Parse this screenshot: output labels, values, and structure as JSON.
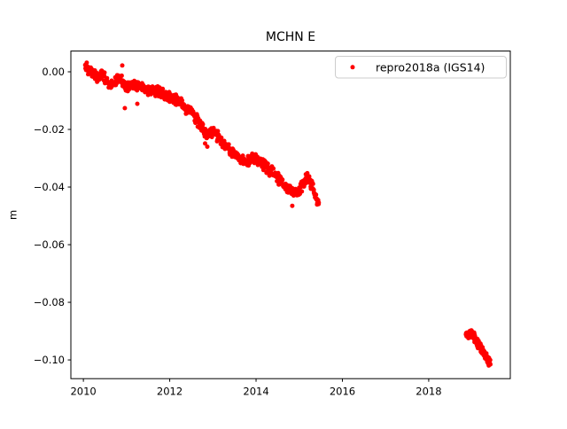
{
  "figure": {
    "background": "#ffffff"
  },
  "chart_data": {
    "type": "scatter",
    "title": "MCHN E",
    "xlabel": "",
    "ylabel": "m",
    "legend_label": "repro2018a (IGS14)",
    "legend_position": "upper right",
    "grid": false,
    "point_color": "#ff0000",
    "axes_color": "#000000",
    "legend_border_color": "#cccccc",
    "xlim": [
      2009.71,
      2019.89
    ],
    "ylim": [
      -0.1065,
      0.0072
    ],
    "xticks": [
      2010,
      2012,
      2014,
      2016,
      2018
    ],
    "xtick_labels": [
      "2010",
      "2012",
      "2014",
      "2016",
      "2018"
    ],
    "yticks": [
      0.0,
      -0.02,
      -0.04,
      -0.06,
      -0.08,
      -0.1
    ],
    "ytick_labels": [
      "0.00",
      "−0.02",
      "−0.04",
      "−0.06",
      "−0.08",
      "−0.10"
    ],
    "series": [
      {
        "name": "repro2018a (IGS14)",
        "color": "#ff0000",
        "marker": "dot",
        "marker_radius_px": 2.5,
        "segments": [
          {
            "x_range": [
              2010.04,
              2015.46
            ],
            "points_per_year": 140,
            "jitter": 0.0022,
            "trend": [
              [
                2010.04,
                0.0015
              ],
              [
                2010.12,
                0.0006
              ],
              [
                2010.23,
                -0.0003
              ],
              [
                2010.33,
                -0.0018
              ],
              [
                2010.43,
                -0.0009
              ],
              [
                2010.53,
                -0.0028
              ],
              [
                2010.64,
                -0.004
              ],
              [
                2010.74,
                -0.0034
              ],
              [
                2010.84,
                -0.0022
              ],
              [
                2010.92,
                -0.0037
              ],
              [
                2011.01,
                -0.0055
              ],
              [
                2011.11,
                -0.0049
              ],
              [
                2011.21,
                -0.0052
              ],
              [
                2011.31,
                -0.0046
              ],
              [
                2011.44,
                -0.0058
              ],
              [
                2011.56,
                -0.0065
              ],
              [
                2011.68,
                -0.0065
              ],
              [
                2011.81,
                -0.0074
              ],
              [
                2011.93,
                -0.0086
              ],
              [
                2012.05,
                -0.0095
              ],
              [
                2012.17,
                -0.0098
              ],
              [
                2012.3,
                -0.0114
              ],
              [
                2012.42,
                -0.0132
              ],
              [
                2012.54,
                -0.0151
              ],
              [
                2012.67,
                -0.0175
              ],
              [
                2012.77,
                -0.02
              ],
              [
                2012.85,
                -0.0218
              ],
              [
                2012.93,
                -0.0209
              ],
              [
                2013.02,
                -0.0203
              ],
              [
                2013.1,
                -0.0222
              ],
              [
                2013.18,
                -0.024
              ],
              [
                2013.26,
                -0.0255
              ],
              [
                2013.36,
                -0.0268
              ],
              [
                2013.47,
                -0.028
              ],
              [
                2013.57,
                -0.0292
              ],
              [
                2013.67,
                -0.0305
              ],
              [
                2013.77,
                -0.0311
              ],
              [
                2013.88,
                -0.0308
              ],
              [
                2013.98,
                -0.0298
              ],
              [
                2014.08,
                -0.0308
              ],
              [
                2014.18,
                -0.0323
              ],
              [
                2014.29,
                -0.0338
              ],
              [
                2014.39,
                -0.0351
              ],
              [
                2014.49,
                -0.0366
              ],
              [
                2014.6,
                -0.0385
              ],
              [
                2014.7,
                -0.04
              ],
              [
                2014.8,
                -0.0409
              ],
              [
                2014.9,
                -0.0418
              ],
              [
                2014.99,
                -0.0418
              ],
              [
                2015.07,
                -0.0394
              ],
              [
                2015.15,
                -0.0372
              ],
              [
                2015.21,
                -0.0369
              ],
              [
                2015.27,
                -0.0385
              ],
              [
                2015.33,
                -0.0409
              ],
              [
                2015.39,
                -0.0437
              ],
              [
                2015.46,
                -0.0462
              ]
            ]
          },
          {
            "x_range": [
              2018.86,
              2019.43
            ],
            "points_per_year": 260,
            "jitter": 0.0018,
            "trend": [
              [
                2018.86,
                -0.0908
              ],
              [
                2018.92,
                -0.092
              ],
              [
                2018.96,
                -0.0902
              ],
              [
                2019.03,
                -0.0914
              ],
              [
                2019.09,
                -0.0932
              ],
              [
                2019.15,
                -0.0948
              ],
              [
                2019.21,
                -0.096
              ],
              [
                2019.27,
                -0.0975
              ],
              [
                2019.33,
                -0.0994
              ],
              [
                2019.39,
                -0.1006
              ],
              [
                2019.43,
                -0.1015
              ]
            ]
          }
        ],
        "outliers": [
          [
            2010.9,
            0.0022
          ],
          [
            2010.96,
            -0.0126
          ],
          [
            2011.25,
            -0.0111
          ],
          [
            2012.82,
            -0.0249
          ],
          [
            2012.87,
            -0.026
          ],
          [
            2014.84,
            -0.0465
          ]
        ]
      }
    ]
  }
}
